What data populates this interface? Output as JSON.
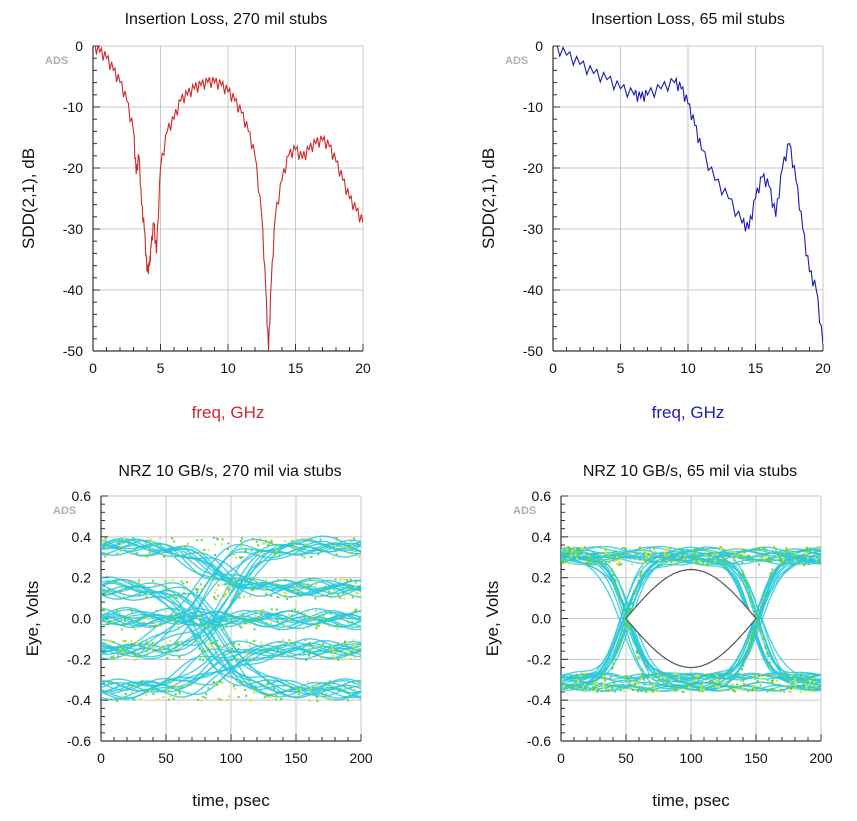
{
  "chart_data": [
    {
      "type": "line",
      "title": "Insertion Loss, 270 mil stubs",
      "watermark": "ADS",
      "xlabel": "freq, GHz",
      "ylabel": "SDD(2,1), dB",
      "xlim": [
        0,
        20
      ],
      "ylim": [
        -50,
        0
      ],
      "xticks": [
        "0",
        "5",
        "10",
        "15",
        "20"
      ],
      "yticks": [
        "0",
        "-10",
        "-20",
        "-30",
        "-40",
        "-50"
      ],
      "grid": true,
      "series": [
        {
          "color": "#cc2a2a",
          "x": [
            0,
            0.5,
            1.0,
            1.5,
            2.0,
            2.5,
            3.0,
            3.2,
            3.4,
            3.6,
            3.8,
            4.0,
            4.2,
            4.3,
            4.5,
            4.7,
            5.0,
            5.5,
            6.0,
            6.5,
            7.0,
            7.5,
            8.0,
            8.5,
            9.0,
            9.5,
            10.0,
            10.5,
            11.0,
            11.5,
            12.0,
            12.5,
            12.8,
            13.0,
            13.2,
            13.5,
            14.0,
            14.5,
            15.0,
            15.5,
            16.0,
            16.5,
            17.0,
            17.5,
            18.0,
            18.5,
            19.0,
            19.5,
            20.0
          ],
          "y": [
            0,
            -1,
            -2,
            -4,
            -6,
            -9,
            -14,
            -21,
            -18,
            -26,
            -30,
            -37,
            -36,
            -33,
            -29,
            -34,
            -20,
            -14,
            -12,
            -9,
            -8,
            -7,
            -6.5,
            -6,
            -6,
            -6.5,
            -7.5,
            -9,
            -11,
            -14,
            -18,
            -28,
            -40,
            -50,
            -39,
            -28,
            -22,
            -18,
            -17,
            -18.5,
            -17,
            -16,
            -15.5,
            -16.5,
            -19,
            -22,
            -25,
            -27,
            -29
          ]
        }
      ]
    },
    {
      "type": "line",
      "title": "Insertion Loss, 65 mil stubs",
      "watermark": "ADS",
      "xlabel": "freq, GHz",
      "ylabel": "SDD(2,1), dB",
      "xlim": [
        0,
        20
      ],
      "ylim": [
        -50,
        0
      ],
      "xticks": [
        "0",
        "5",
        "10",
        "15",
        "20"
      ],
      "yticks": [
        "0",
        "-10",
        "-20",
        "-30",
        "-40",
        "-50"
      ],
      "grid": true,
      "series": [
        {
          "color": "#1c1cb0",
          "x": [
            0,
            1,
            2,
            3,
            4,
            5,
            6,
            6.5,
            7,
            8,
            9,
            9.5,
            10,
            10.5,
            11,
            12,
            13,
            14,
            14.5,
            15,
            15.5,
            16,
            16.5,
            17,
            17.5,
            18,
            18.5,
            19,
            19.5,
            20
          ],
          "y": [
            0,
            -1.5,
            -3,
            -4.5,
            -5.5,
            -7,
            -8,
            -8.5,
            -8,
            -7,
            -6,
            -7,
            -9.5,
            -13,
            -17,
            -22,
            -25,
            -29,
            -30,
            -25,
            -21.5,
            -23,
            -28,
            -20,
            -16,
            -22,
            -30,
            -37,
            -40,
            -49
          ]
        }
      ]
    },
    {
      "type": "scatter",
      "title": "NRZ 10 GB/s, 270 mil via stubs",
      "watermark": "ADS",
      "xlabel": "time, psec",
      "ylabel": "Eye, Volts",
      "xlim": [
        0,
        200
      ],
      "ylim": [
        -0.6,
        0.6
      ],
      "xticks": [
        "0",
        "50",
        "100",
        "150",
        "200"
      ],
      "yticks": [
        "0.6",
        "0.4",
        "0.2",
        "0.0",
        "-0.2",
        "-0.4",
        "-0.6"
      ],
      "grid": true,
      "levels": [
        0.35,
        0.15,
        0.0,
        -0.15,
        -0.35
      ],
      "crossing_time": 85,
      "eye_open": false
    },
    {
      "type": "scatter",
      "title": "NRZ 10 GB/s, 65 mil via stubs",
      "watermark": "ADS",
      "xlabel": "time, psec",
      "ylabel": "Eye, Volts",
      "xlim": [
        0,
        200
      ],
      "ylim": [
        -0.6,
        0.6
      ],
      "xticks": [
        "0",
        "50",
        "100",
        "150",
        "200"
      ],
      "yticks": [
        "0.6",
        "0.4",
        "0.2",
        "0.0",
        "-0.2",
        "-0.4",
        "-0.6"
      ],
      "grid": true,
      "levels": [
        0.31,
        -0.31
      ],
      "crossing_times": [
        50,
        150
      ],
      "eye_open": true,
      "eye_height": [
        0.24,
        -0.24
      ]
    }
  ],
  "colors": {
    "grid": "#c8c8c8",
    "axis": "#333333",
    "red_label": "#cc2a2a",
    "blue_label": "#1c1cb0",
    "eye_cyan": "#28c8dc",
    "eye_green": "#5ed24a",
    "eye_yellow": "#d8e23a",
    "eye_boundary": "#555555"
  }
}
